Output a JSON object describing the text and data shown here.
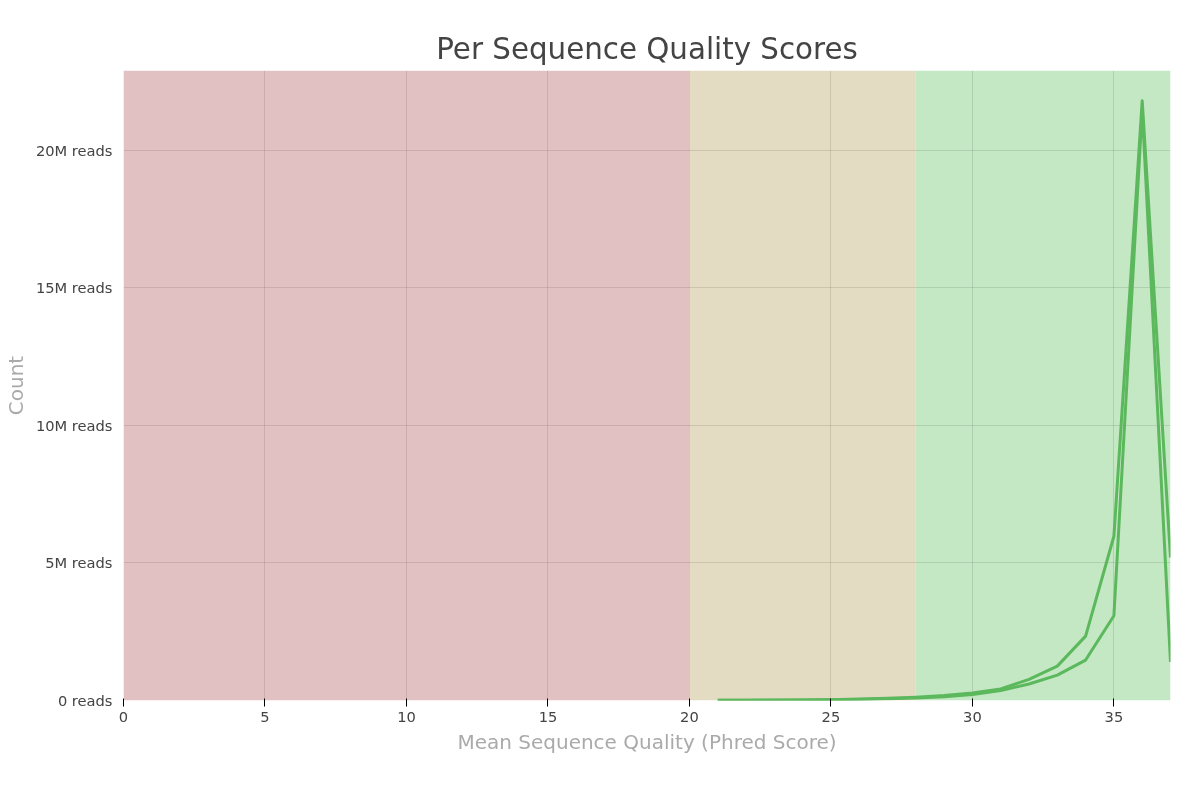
{
  "chart_data": {
    "type": "line",
    "title": "Per Sequence Quality Scores",
    "xlabel": "Mean Sequence Quality (Phred Score)",
    "ylabel": "Count",
    "x": [
      21,
      22,
      23,
      24,
      25,
      26,
      27,
      28,
      29,
      30,
      31,
      32,
      33,
      34,
      35,
      36,
      37
    ],
    "series": [
      {
        "color": "#5cb85c",
        "values": [
          0.01,
          0.01,
          0.02,
          0.02,
          0.03,
          0.05,
          0.08,
          0.12,
          0.18,
          0.27,
          0.42,
          0.77,
          1.25,
          2.34,
          5.97,
          21.8,
          5.2
        ]
      },
      {
        "color": "#5cb85c",
        "values": [
          0.01,
          0.01,
          0.01,
          0.02,
          0.03,
          0.04,
          0.06,
          0.09,
          0.14,
          0.22,
          0.36,
          0.6,
          0.92,
          1.47,
          3.08,
          21.5,
          1.4
        ]
      }
    ],
    "xlim": [
      0,
      37
    ],
    "ylim": [
      0,
      22.9
    ],
    "xticks": [
      0,
      5,
      10,
      15,
      20,
      25,
      30,
      35
    ],
    "yticks": [
      {
        "value": 0,
        "label": "0 reads"
      },
      {
        "value": 5,
        "label": "5M reads"
      },
      {
        "value": 10,
        "label": "10M reads"
      },
      {
        "value": 15,
        "label": "15M reads"
      },
      {
        "value": 20,
        "label": "20M reads"
      }
    ],
    "bands": [
      {
        "axis": "x",
        "from": 0,
        "to": 20,
        "color": "#e2c1c2"
      },
      {
        "axis": "x",
        "from": 20,
        "to": 28,
        "color": "#e4dbc3"
      },
      {
        "axis": "x",
        "from": 28,
        "to": 37,
        "color": "#c4e7c4"
      }
    ],
    "grid": true,
    "marker": "none",
    "line_style": "solid"
  }
}
